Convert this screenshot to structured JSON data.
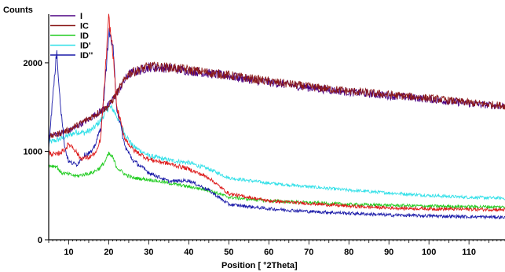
{
  "chart_data": {
    "type": "line",
    "ylabel": "Counts",
    "xlabel": "Position [ °2Theta]",
    "xlim": [
      5,
      119
    ],
    "ylim": [
      0,
      2550
    ],
    "xticks": [
      10,
      20,
      30,
      40,
      50,
      60,
      70,
      80,
      90,
      100,
      110
    ],
    "yticks": [
      0,
      1000,
      2000
    ],
    "grid": false,
    "legend_position": "top-left",
    "series": [
      {
        "name": "I",
        "color": "#4b0082",
        "points": [
          [
            5,
            1170
          ],
          [
            10,
            1230
          ],
          [
            15,
            1360
          ],
          [
            20,
            1520
          ],
          [
            25,
            1870
          ],
          [
            30,
            1950
          ],
          [
            35,
            1940
          ],
          [
            40,
            1910
          ],
          [
            50,
            1850
          ],
          [
            60,
            1780
          ],
          [
            70,
            1720
          ],
          [
            80,
            1670
          ],
          [
            90,
            1630
          ],
          [
            100,
            1590
          ],
          [
            110,
            1540
          ],
          [
            119,
            1510
          ]
        ]
      },
      {
        "name": "IC",
        "color": "#8b1a1a",
        "points": [
          [
            5,
            1160
          ],
          [
            10,
            1240
          ],
          [
            15,
            1370
          ],
          [
            20,
            1510
          ],
          [
            25,
            1880
          ],
          [
            30,
            1960
          ],
          [
            35,
            1950
          ],
          [
            40,
            1920
          ],
          [
            50,
            1860
          ],
          [
            60,
            1790
          ],
          [
            70,
            1730
          ],
          [
            80,
            1680
          ],
          [
            90,
            1640
          ],
          [
            100,
            1600
          ],
          [
            110,
            1550
          ],
          [
            119,
            1515
          ]
        ]
      },
      {
        "name": "ID",
        "color": "#22cc22",
        "points": [
          [
            5,
            840
          ],
          [
            7,
            830
          ],
          [
            8,
            760
          ],
          [
            10,
            740
          ],
          [
            12,
            720
          ],
          [
            14,
            740
          ],
          [
            16,
            760
          ],
          [
            18,
            820
          ],
          [
            19,
            880
          ],
          [
            20,
            970
          ],
          [
            21,
            930
          ],
          [
            22,
            820
          ],
          [
            24,
            740
          ],
          [
            26,
            700
          ],
          [
            30,
            680
          ],
          [
            35,
            640
          ],
          [
            40,
            600
          ],
          [
            45,
            560
          ],
          [
            50,
            480
          ],
          [
            60,
            440
          ],
          [
            70,
            420
          ],
          [
            80,
            400
          ],
          [
            90,
            390
          ],
          [
            100,
            380
          ],
          [
            110,
            375
          ],
          [
            119,
            370
          ]
        ]
      },
      {
        "name": "ID'",
        "color": "#33e0e8",
        "points": [
          [
            5,
            1100
          ],
          [
            8,
            1140
          ],
          [
            10,
            1180
          ],
          [
            12,
            1220
          ],
          [
            14,
            1210
          ],
          [
            16,
            1250
          ],
          [
            18,
            1350
          ],
          [
            19,
            1430
          ],
          [
            20,
            1500
          ],
          [
            21,
            1480
          ],
          [
            22,
            1400
          ],
          [
            24,
            1200
          ],
          [
            26,
            1060
          ],
          [
            30,
            950
          ],
          [
            35,
            900
          ],
          [
            40,
            870
          ],
          [
            45,
            800
          ],
          [
            50,
            700
          ],
          [
            60,
            640
          ],
          [
            70,
            600
          ],
          [
            80,
            560
          ],
          [
            90,
            530
          ],
          [
            100,
            500
          ],
          [
            110,
            480
          ],
          [
            119,
            470
          ]
        ]
      },
      {
        "name": "ID''",
        "color": "#1a1aa8",
        "points": [
          [
            5,
            1050
          ],
          [
            6,
            1600
          ],
          [
            7,
            2130
          ],
          [
            8,
            1500
          ],
          [
            9,
            1050
          ],
          [
            10,
            880
          ],
          [
            12,
            850
          ],
          [
            14,
            960
          ],
          [
            16,
            1000
          ],
          [
            18,
            1260
          ],
          [
            19,
            1700
          ],
          [
            20,
            2350
          ],
          [
            21,
            2200
          ],
          [
            22,
            1500
          ],
          [
            24,
            1060
          ],
          [
            26,
            900
          ],
          [
            30,
            760
          ],
          [
            35,
            660
          ],
          [
            40,
            670
          ],
          [
            45,
            560
          ],
          [
            50,
            400
          ],
          [
            60,
            350
          ],
          [
            70,
            320
          ],
          [
            80,
            300
          ],
          [
            90,
            280
          ],
          [
            100,
            270
          ],
          [
            110,
            260
          ],
          [
            119,
            255
          ]
        ]
      },
      {
        "name": "",
        "color": "#dd1a1a",
        "points": [
          [
            5,
            980
          ],
          [
            7,
            960
          ],
          [
            9,
            1020
          ],
          [
            10,
            1080
          ],
          [
            11,
            1050
          ],
          [
            13,
            920
          ],
          [
            15,
            930
          ],
          [
            17,
            990
          ],
          [
            18,
            1150
          ],
          [
            19,
            1800
          ],
          [
            20,
            2500
          ],
          [
            21,
            2150
          ],
          [
            22,
            1500
          ],
          [
            24,
            1150
          ],
          [
            26,
            1020
          ],
          [
            30,
            910
          ],
          [
            35,
            860
          ],
          [
            40,
            800
          ],
          [
            45,
            700
          ],
          [
            50,
            520
          ],
          [
            60,
            440
          ],
          [
            70,
            410
          ],
          [
            80,
            380
          ],
          [
            90,
            360
          ],
          [
            100,
            350
          ],
          [
            110,
            345
          ],
          [
            119,
            340
          ]
        ]
      }
    ]
  }
}
